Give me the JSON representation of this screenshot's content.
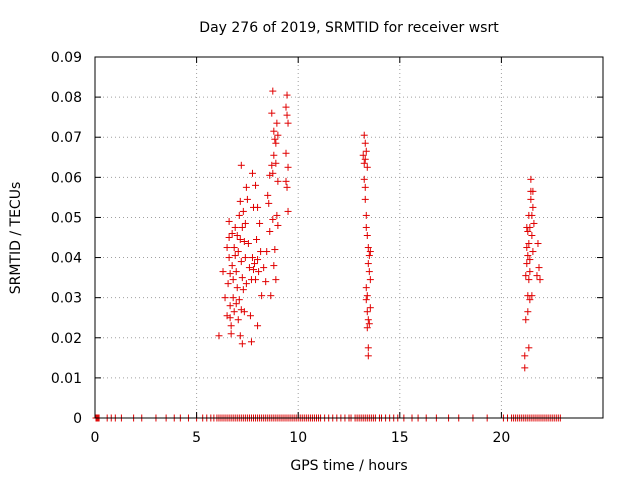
{
  "chart_data": {
    "type": "scatter",
    "title": "Day 276 of 2019, SRMTID for receiver wsrt",
    "xlabel": "GPS time / hours",
    "ylabel": "SRMTID / TECUs",
    "xlim": [
      0,
      25
    ],
    "ylim": [
      0,
      0.09
    ],
    "x_ticks": [
      0,
      5,
      10,
      15,
      20
    ],
    "x_tick_labels": [
      "0",
      "5",
      "10",
      "15",
      "20"
    ],
    "y_ticks": [
      0,
      0.01,
      0.02,
      0.03,
      0.04,
      0.05,
      0.06,
      0.07,
      0.08,
      0.09
    ],
    "y_tick_labels": [
      "0",
      "0.01",
      "0.02",
      "0.03",
      "0.04",
      "0.05",
      "0.06",
      "0.07",
      "0.08",
      "0.09"
    ],
    "grid": true,
    "marker": "plus",
    "color": "#e00000",
    "series": [
      {
        "values": [
          [
            6.1,
            0.0205
          ],
          [
            6.3,
            0.0365
          ],
          [
            6.4,
            0.03
          ],
          [
            6.5,
            0.0255
          ],
          [
            6.5,
            0.0425
          ],
          [
            6.55,
            0.0335
          ],
          [
            6.6,
            0.049
          ],
          [
            6.6,
            0.045
          ],
          [
            6.6,
            0.04
          ],
          [
            6.65,
            0.036
          ],
          [
            6.65,
            0.028
          ],
          [
            6.65,
            0.025
          ],
          [
            6.7,
            0.023
          ],
          [
            6.7,
            0.021
          ],
          [
            6.75,
            0.046
          ],
          [
            6.75,
            0.038
          ],
          [
            6.8,
            0.0345
          ],
          [
            6.8,
            0.03
          ],
          [
            6.85,
            0.0425
          ],
          [
            6.85,
            0.0265
          ],
          [
            6.9,
            0.0475
          ],
          [
            6.9,
            0.0405
          ],
          [
            6.95,
            0.0365
          ],
          [
            6.95,
            0.0285
          ],
          [
            7.0,
            0.0455
          ],
          [
            7.0,
            0.0325
          ],
          [
            7.05,
            0.0415
          ],
          [
            7.05,
            0.0245
          ],
          [
            7.1,
            0.0505
          ],
          [
            7.1,
            0.0295
          ],
          [
            7.15,
            0.054
          ],
          [
            7.15,
            0.0445
          ],
          [
            7.15,
            0.0205
          ],
          [
            7.2,
            0.063
          ],
          [
            7.2,
            0.039
          ],
          [
            7.2,
            0.027
          ],
          [
            7.25,
            0.0475
          ],
          [
            7.25,
            0.035
          ],
          [
            7.25,
            0.0185
          ],
          [
            7.3,
            0.0515
          ],
          [
            7.3,
            0.032
          ],
          [
            7.35,
            0.044
          ],
          [
            7.35,
            0.0265
          ],
          [
            7.4,
            0.0485
          ],
          [
            7.4,
            0.04
          ],
          [
            7.45,
            0.0575
          ],
          [
            7.45,
            0.0335
          ],
          [
            7.5,
            0.0545
          ],
          [
            7.55,
            0.0435
          ],
          [
            7.6,
            0.0375
          ],
          [
            7.65,
            0.0255
          ],
          [
            7.7,
            0.0345
          ],
          [
            7.7,
            0.019
          ],
          [
            7.75,
            0.061
          ],
          [
            7.75,
            0.04
          ],
          [
            7.8,
            0.0525
          ],
          [
            7.8,
            0.037
          ],
          [
            7.85,
            0.0385
          ],
          [
            7.9,
            0.058
          ],
          [
            7.9,
            0.0345
          ],
          [
            7.95,
            0.0445
          ],
          [
            8.0,
            0.0525
          ],
          [
            8.0,
            0.0395
          ],
          [
            8.0,
            0.023
          ],
          [
            8.05,
            0.0365
          ],
          [
            8.1,
            0.0485
          ],
          [
            8.15,
            0.0415
          ],
          [
            8.2,
            0.0305
          ],
          [
            8.3,
            0.0375
          ],
          [
            8.4,
            0.034
          ],
          [
            8.45,
            0.0415
          ],
          [
            8.5,
            0.0555
          ],
          [
            8.55,
            0.0535
          ],
          [
            8.6,
            0.0605
          ],
          [
            8.6,
            0.0465
          ],
          [
            8.65,
            0.0305
          ],
          [
            8.7,
            0.076
          ],
          [
            8.7,
            0.063
          ],
          [
            8.75,
            0.0815
          ],
          [
            8.75,
            0.061
          ],
          [
            8.75,
            0.0495
          ],
          [
            8.8,
            0.0715
          ],
          [
            8.8,
            0.0655
          ],
          [
            8.8,
            0.038
          ],
          [
            8.85,
            0.0695
          ],
          [
            8.85,
            0.042
          ],
          [
            8.9,
            0.0685
          ],
          [
            8.9,
            0.0635
          ],
          [
            8.9,
            0.0345
          ],
          [
            8.95,
            0.0735
          ],
          [
            8.95,
            0.0505
          ],
          [
            9.0,
            0.0705
          ],
          [
            9.0,
            0.059
          ],
          [
            9.0,
            0.048
          ],
          [
            9.4,
            0.0775
          ],
          [
            9.4,
            0.066
          ],
          [
            9.4,
            0.059
          ],
          [
            9.45,
            0.0805
          ],
          [
            9.45,
            0.0755
          ],
          [
            9.45,
            0.0575
          ],
          [
            9.5,
            0.0735
          ],
          [
            9.5,
            0.0625
          ],
          [
            9.5,
            0.0515
          ],
          [
            13.2,
            0.0655
          ],
          [
            13.25,
            0.0705
          ],
          [
            13.25,
            0.0635
          ],
          [
            13.25,
            0.0595
          ],
          [
            13.3,
            0.0685
          ],
          [
            13.3,
            0.0645
          ],
          [
            13.3,
            0.0575
          ],
          [
            13.3,
            0.0545
          ],
          [
            13.35,
            0.0665
          ],
          [
            13.35,
            0.0505
          ],
          [
            13.35,
            0.0475
          ],
          [
            13.35,
            0.0325
          ],
          [
            13.35,
            0.0295
          ],
          [
            13.4,
            0.0625
          ],
          [
            13.4,
            0.0455
          ],
          [
            13.4,
            0.0305
          ],
          [
            13.4,
            0.0265
          ],
          [
            13.4,
            0.0225
          ],
          [
            13.45,
            0.0425
          ],
          [
            13.45,
            0.0385
          ],
          [
            13.45,
            0.0245
          ],
          [
            13.45,
            0.0175
          ],
          [
            13.45,
            0.0155
          ],
          [
            13.5,
            0.0405
          ],
          [
            13.5,
            0.0365
          ],
          [
            13.5,
            0.0235
          ],
          [
            13.55,
            0.0415
          ],
          [
            13.55,
            0.0345
          ],
          [
            13.55,
            0.0275
          ],
          [
            21.15,
            0.0125
          ],
          [
            21.15,
            0.0155
          ],
          [
            21.2,
            0.0245
          ],
          [
            21.2,
            0.0355
          ],
          [
            21.25,
            0.0475
          ],
          [
            21.25,
            0.0425
          ],
          [
            21.25,
            0.0385
          ],
          [
            21.3,
            0.0265
          ],
          [
            21.3,
            0.0305
          ],
          [
            21.3,
            0.0405
          ],
          [
            21.3,
            0.0465
          ],
          [
            21.35,
            0.0175
          ],
          [
            21.35,
            0.0345
          ],
          [
            21.35,
            0.0435
          ],
          [
            21.35,
            0.0505
          ],
          [
            21.4,
            0.0295
          ],
          [
            21.4,
            0.0365
          ],
          [
            21.4,
            0.0395
          ],
          [
            21.4,
            0.0475
          ],
          [
            21.45,
            0.0545
          ],
          [
            21.45,
            0.0565
          ],
          [
            21.45,
            0.0595
          ],
          [
            21.5,
            0.0505
          ],
          [
            21.5,
            0.0455
          ],
          [
            21.5,
            0.0305
          ],
          [
            21.55,
            0.0525
          ],
          [
            21.55,
            0.0565
          ],
          [
            21.55,
            0.0415
          ],
          [
            21.6,
            0.0485
          ],
          [
            21.75,
            0.0355
          ],
          [
            21.8,
            0.0435
          ],
          [
            21.85,
            0.0375
          ],
          [
            21.9,
            0.0345
          ]
        ],
        "zero_values_x": [
          0.05,
          0.1,
          0.15,
          0.2,
          0.6,
          0.8,
          1.0,
          1.3,
          1.9,
          2.3,
          3.0,
          3.5,
          3.9,
          4.2,
          4.6,
          5.0,
          5.3,
          5.5,
          5.7,
          5.85,
          6.0,
          6.1,
          6.2,
          6.3,
          6.4,
          6.5,
          6.6,
          6.7,
          6.8,
          6.9,
          7.0,
          7.1,
          7.2,
          7.3,
          7.4,
          7.5,
          7.6,
          7.7,
          7.8,
          7.9,
          8.0,
          8.1,
          8.2,
          8.3,
          8.4,
          8.5,
          8.6,
          8.7,
          8.8,
          8.9,
          9.0,
          9.1,
          9.2,
          9.3,
          9.4,
          9.5,
          9.6,
          9.7,
          9.8,
          9.9,
          10.0,
          10.1,
          10.2,
          10.3,
          10.4,
          10.5,
          10.6,
          10.7,
          10.8,
          10.9,
          11.0,
          11.1,
          11.3,
          11.5,
          11.7,
          11.9,
          12.1,
          12.3,
          12.5,
          12.6,
          12.8,
          12.9,
          13.0,
          13.1,
          13.2,
          13.3,
          13.4,
          13.5,
          13.6,
          13.7,
          13.8,
          14.0,
          14.1,
          14.3,
          14.5,
          14.7,
          14.9,
          15.2,
          15.6,
          15.9,
          16.3,
          16.8,
          17.4,
          17.9,
          18.6,
          19.3,
          20.1,
          20.3,
          20.5,
          20.6,
          20.7,
          20.8,
          20.9,
          21.0,
          21.1,
          21.2,
          21.3,
          21.4,
          21.5,
          21.6,
          21.7,
          21.8,
          21.9,
          22.0,
          22.1,
          22.2,
          22.3,
          22.4,
          22.5,
          22.6,
          22.7,
          22.8,
          22.9
        ]
      }
    ]
  }
}
